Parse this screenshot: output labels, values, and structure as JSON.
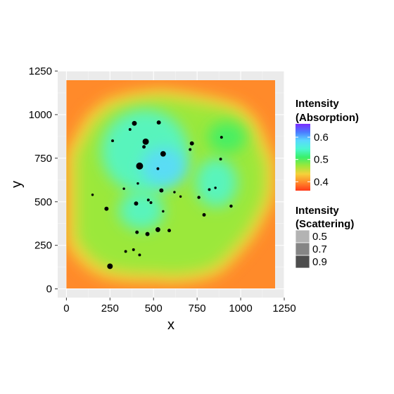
{
  "chart_data": {
    "type": "heatmap",
    "title": "",
    "xlabel": "x",
    "ylabel": "y",
    "xlim": [
      -50,
      1250
    ],
    "ylim": [
      -50,
      1250
    ],
    "x_ticks": [
      0,
      250,
      500,
      750,
      1000,
      1250
    ],
    "y_ticks": [
      0,
      250,
      500,
      750,
      1000,
      1250
    ],
    "x_tick_labels": [
      "0",
      "250",
      "500",
      "750",
      "1000",
      "1250"
    ],
    "y_tick_labels": [
      "0",
      "250",
      "500",
      "750",
      "1000",
      "1250"
    ],
    "grid": true,
    "background": "#ebebeb",
    "legend_placement": "right",
    "absorption": {
      "legend_title_line1": "Intensity",
      "legend_title_line2": "(Absorption)",
      "range": [
        0.36,
        0.66
      ],
      "breaks": [
        0.4,
        0.5,
        0.6
      ],
      "break_labels": [
        "0.4",
        "0.5",
        "0.6"
      ],
      "colors": [
        "#ff3a1a",
        "#ff8a2a",
        "#f5d23a",
        "#9be83a",
        "#3af06a",
        "#4cf7d2",
        "#5ad8ff",
        "#4a7cff",
        "#7a2cff"
      ],
      "background_value": 0.38,
      "blob_outline": [
        [
          0,
          780
        ],
        [
          60,
          900
        ],
        [
          120,
          1000
        ],
        [
          230,
          1090
        ],
        [
          370,
          1130
        ],
        [
          540,
          1150
        ],
        [
          700,
          1130
        ],
        [
          860,
          1100
        ],
        [
          1000,
          1060
        ],
        [
          1090,
          980
        ],
        [
          1130,
          900
        ],
        [
          1170,
          800
        ],
        [
          1200,
          730
        ],
        [
          1200,
          560
        ],
        [
          1170,
          460
        ],
        [
          1130,
          390
        ],
        [
          1100,
          330
        ],
        [
          1050,
          260
        ],
        [
          980,
          180
        ],
        [
          900,
          100
        ],
        [
          820,
          60
        ],
        [
          720,
          40
        ],
        [
          600,
          30
        ],
        [
          500,
          40
        ],
        [
          360,
          40
        ],
        [
          220,
          60
        ],
        [
          120,
          110
        ],
        [
          40,
          190
        ],
        [
          0,
          260
        ]
      ],
      "blob_value": 0.48,
      "inner_regions": [
        {
          "cx": 450,
          "cy": 790,
          "rx": 250,
          "ry": 240,
          "value": 0.55
        },
        {
          "cx": 560,
          "cy": 700,
          "rx": 130,
          "ry": 110,
          "value": 0.58
        },
        {
          "cx": 860,
          "cy": 610,
          "rx": 120,
          "ry": 140,
          "value": 0.53
        },
        {
          "cx": 430,
          "cy": 450,
          "rx": 130,
          "ry": 110,
          "value": 0.53
        },
        {
          "cx": 920,
          "cy": 870,
          "rx": 110,
          "ry": 90,
          "value": 0.52
        }
      ]
    },
    "scattering": {
      "legend_title_line1": "Intensity",
      "legend_title_line2": "(Scattering)",
      "breaks": [
        0.5,
        0.7,
        0.9
      ],
      "break_labels": [
        "0.5",
        "0.7",
        "0.9"
      ],
      "colors": [
        "#b3b3b3",
        "#858585",
        "#4d4d4d"
      ],
      "particle_color": "#000000",
      "particles": [
        {
          "x": 390,
          "y": 950,
          "r": 14
        },
        {
          "x": 530,
          "y": 955,
          "r": 12
        },
        {
          "x": 365,
          "y": 915,
          "r": 8
        },
        {
          "x": 265,
          "y": 850,
          "r": 8
        },
        {
          "x": 455,
          "y": 845,
          "r": 18
        },
        {
          "x": 445,
          "y": 815,
          "r": 10
        },
        {
          "x": 890,
          "y": 870,
          "r": 8
        },
        {
          "x": 720,
          "y": 835,
          "r": 12
        },
        {
          "x": 710,
          "y": 800,
          "r": 8
        },
        {
          "x": 555,
          "y": 775,
          "r": 16
        },
        {
          "x": 885,
          "y": 745,
          "r": 8
        },
        {
          "x": 420,
          "y": 705,
          "r": 20
        },
        {
          "x": 525,
          "y": 690,
          "r": 8
        },
        {
          "x": 410,
          "y": 605,
          "r": 7
        },
        {
          "x": 150,
          "y": 540,
          "r": 7
        },
        {
          "x": 330,
          "y": 575,
          "r": 7
        },
        {
          "x": 545,
          "y": 565,
          "r": 12
        },
        {
          "x": 620,
          "y": 555,
          "r": 7
        },
        {
          "x": 655,
          "y": 530,
          "r": 7
        },
        {
          "x": 760,
          "y": 525,
          "r": 9
        },
        {
          "x": 820,
          "y": 570,
          "r": 8
        },
        {
          "x": 855,
          "y": 580,
          "r": 7
        },
        {
          "x": 470,
          "y": 510,
          "r": 8
        },
        {
          "x": 485,
          "y": 495,
          "r": 8
        },
        {
          "x": 400,
          "y": 490,
          "r": 12
        },
        {
          "x": 945,
          "y": 475,
          "r": 9
        },
        {
          "x": 230,
          "y": 460,
          "r": 12
        },
        {
          "x": 555,
          "y": 445,
          "r": 7
        },
        {
          "x": 790,
          "y": 425,
          "r": 10
        },
        {
          "x": 525,
          "y": 340,
          "r": 14
        },
        {
          "x": 590,
          "y": 335,
          "r": 10
        },
        {
          "x": 405,
          "y": 325,
          "r": 10
        },
        {
          "x": 465,
          "y": 315,
          "r": 12
        },
        {
          "x": 340,
          "y": 215,
          "r": 8
        },
        {
          "x": 385,
          "y": 225,
          "r": 8
        },
        {
          "x": 420,
          "y": 195,
          "r": 8
        },
        {
          "x": 250,
          "y": 130,
          "r": 16
        }
      ]
    }
  }
}
